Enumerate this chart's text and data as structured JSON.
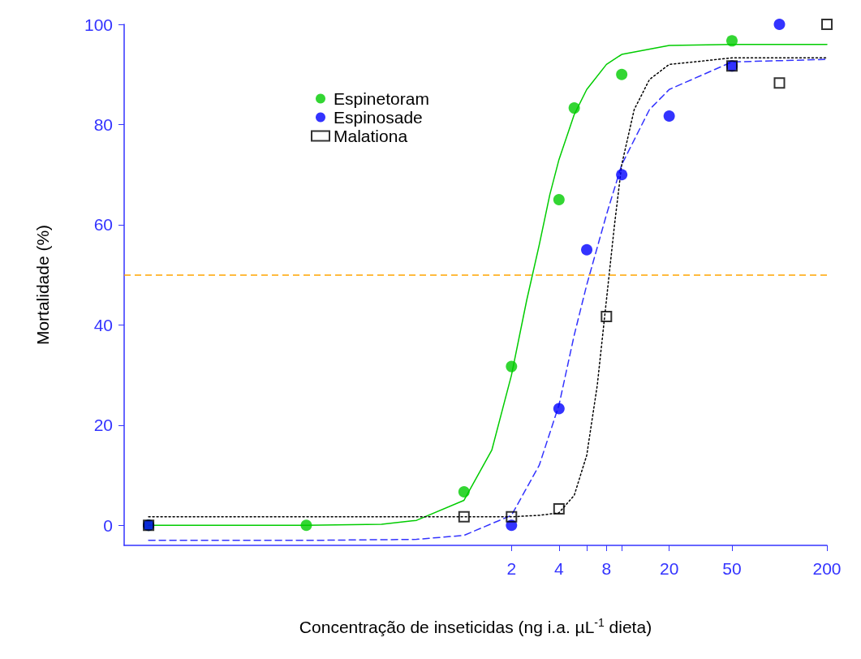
{
  "chart_data": {
    "type": "scatter",
    "xlabel": "Concentração de inseticidas (ng i.a. µL$^{-1}$ dieta)",
    "ylabel": "Mortalidade (%)",
    "log": "x",
    "xlim": [
      0.007,
      200
    ],
    "xticks": [
      2,
      4,
      {
        "value": 6,
        "label": null
      },
      8,
      {
        "value": 10,
        "label": null
      },
      20,
      50,
      200
    ],
    "ylim": [
      -4,
      100
    ],
    "yticks": [
      0,
      20,
      40,
      60,
      80,
      100
    ],
    "grid": false,
    "legend": "top left",
    "ref_lines": [
      {
        "axis": "y",
        "value": 50,
        "label": null,
        "color": "#ffa500",
        "line_style": "dashed"
      }
    ],
    "series": [
      {
        "name": "Espinetoram",
        "marker": "circle",
        "color": "#00cc00",
        "x": [
          0.01,
          0.1,
          1,
          2,
          4,
          5,
          10,
          50
        ],
        "values": [
          0,
          0,
          6.7,
          31.7,
          65,
          83.3,
          90,
          96.7
        ]
      },
      {
        "name": "Espinosade",
        "marker": "circle",
        "color": "#0000ff",
        "x": [
          0.01,
          2,
          4,
          6,
          10,
          20,
          50,
          100
        ],
        "values": [
          0,
          0,
          23.3,
          55,
          70,
          81.7,
          91.7,
          100
        ]
      },
      {
        "name": "Malationa",
        "marker": "square",
        "color": "#000000",
        "x": [
          0.01,
          1,
          2,
          4,
          8,
          50,
          100,
          200
        ],
        "values": [
          0,
          1.7,
          1.7,
          3.3,
          41.7,
          91.7,
          88.3,
          100
        ]
      },
      {
        "type": "line",
        "marker": "none",
        "line_style": "solid",
        "color": "#00cc00",
        "x": [
          0.01,
          0.1,
          0.3,
          0.5,
          1,
          1.5,
          2,
          2.5,
          3,
          3.5,
          4,
          5,
          6,
          8,
          10,
          20,
          50,
          200
        ],
        "values": [
          0,
          0,
          0.2,
          1,
          5,
          15,
          30,
          45,
          56,
          66,
          73,
          82,
          87,
          92,
          94,
          95.8,
          96,
          96
        ]
      },
      {
        "type": "line",
        "marker": "none",
        "line_style": "dashed",
        "color": "#3333ff",
        "x": [
          0.01,
          0.1,
          0.5,
          1,
          2,
          3,
          4,
          5,
          6,
          8,
          10,
          15,
          20,
          50,
          200
        ],
        "values": [
          -3,
          -3,
          -2.8,
          -2,
          2,
          12,
          24,
          38,
          48,
          62,
          72,
          83,
          87,
          92.5,
          93
        ]
      },
      {
        "type": "line",
        "marker": "none",
        "line_style": "dotted",
        "color": "#000000",
        "x": [
          0.01,
          1,
          2,
          3,
          4,
          5,
          6,
          7,
          8,
          9,
          10,
          12,
          15,
          20,
          50,
          200
        ],
        "values": [
          1.7,
          1.7,
          1.7,
          2,
          2.5,
          6,
          14,
          28,
          45,
          60,
          72,
          83,
          89,
          92,
          93.3,
          93.3
        ]
      }
    ]
  }
}
